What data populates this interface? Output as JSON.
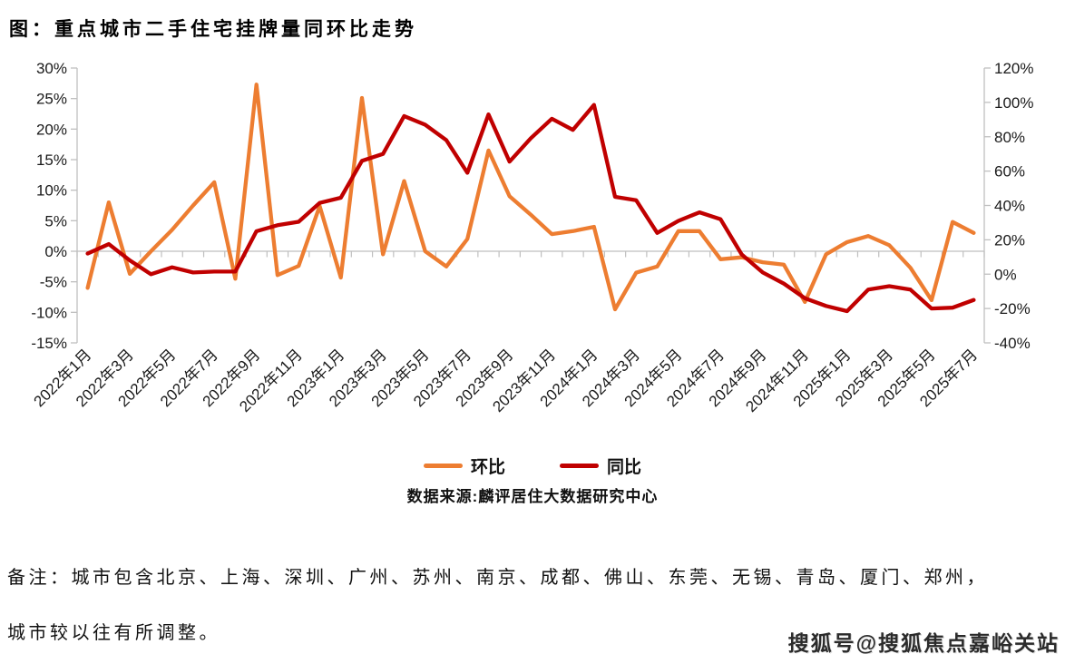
{
  "title": "图：重点城市二手住宅挂牌量同环比走势",
  "source": "数据来源:麟评居住大数据研究中心",
  "notes": [
    "备注：城市包含北京、上海、深圳、广州、苏州、南京、成都、佛山、东莞、无锡、青岛、厦门、郑州，",
    "城市较以往有所调整。"
  ],
  "watermark": "搜狐号@搜狐焦点嘉峪关站",
  "colors": {
    "mom_line": "#ED7D31",
    "yoy_line": "#C00000",
    "axis": "#BFBFBF",
    "tick_text": "#1A1A1A"
  },
  "chart_data": {
    "type": "line",
    "title": "重点城市二手住宅挂牌量同环比走势",
    "x_label_step": 2,
    "months": [
      "2022年1月",
      "2022年2月",
      "2022年3月",
      "2022年4月",
      "2022年5月",
      "2022年6月",
      "2022年7月",
      "2022年8月",
      "2022年9月",
      "2022年10月",
      "2022年11月",
      "2022年12月",
      "2023年1月",
      "2023年2月",
      "2023年3月",
      "2023年4月",
      "2023年5月",
      "2023年6月",
      "2023年7月",
      "2023年8月",
      "2023年9月",
      "2023年10月",
      "2023年11月",
      "2023年12月",
      "2024年1月",
      "2024年2月",
      "2024年3月",
      "2024年4月",
      "2024年5月",
      "2024年6月",
      "2024年7月",
      "2024年8月",
      "2024年9月",
      "2024年10月",
      "2024年11月",
      "2024年12月",
      "2025年1月",
      "2025年2月",
      "2025年3月",
      "2025年4月",
      "2025年5月",
      "2025年6月",
      "2025年7月"
    ],
    "series": [
      {
        "name": "环比",
        "axis": "left",
        "color": "#ED7D31",
        "values": [
          -6,
          8,
          -3.7,
          0,
          3.5,
          7.5,
          11.3,
          -4.5,
          27.3,
          -3.9,
          -2.4,
          7.4,
          -4.3,
          25.1,
          -0.5,
          11.5,
          0,
          -2.5,
          2,
          16.5,
          9,
          6,
          2.8,
          3.3,
          4,
          -9.5,
          -3.5,
          -2.5,
          3.3,
          3.3,
          -1.3,
          -1,
          -1.8,
          -2.2,
          -8.3,
          -0.5,
          1.5,
          2.5,
          1,
          -2.7,
          -8,
          4.8,
          3
        ]
      },
      {
        "name": "同比",
        "axis": "right",
        "color": "#C00000",
        "values": [
          12,
          17.5,
          8,
          0,
          4,
          1,
          1.5,
          1.5,
          25,
          28.5,
          30.5,
          41.5,
          44.5,
          66,
          70,
          92,
          87,
          78,
          59,
          93,
          65.5,
          79,
          90.5,
          84,
          98.5,
          45,
          43,
          24,
          31,
          36,
          32,
          11.5,
          1,
          -5.5,
          -14,
          -18.5,
          -21.5,
          -9,
          -7,
          -9,
          -20,
          -19.5,
          -15
        ]
      }
    ],
    "left_axis": {
      "min": -15,
      "max": 30,
      "step": 5,
      "ticks": [
        "30%",
        "25%",
        "20%",
        "15%",
        "10%",
        "5%",
        "0%",
        "-5%",
        "-10%",
        "-15%"
      ]
    },
    "right_axis": {
      "min": -40,
      "max": 120,
      "step": 20,
      "ticks": [
        "120%",
        "100%",
        "80%",
        "60%",
        "40%",
        "20%",
        "0%",
        "-20%",
        "-40%"
      ]
    },
    "legend_position": "bottom-center",
    "grid": "zero-line-only"
  }
}
